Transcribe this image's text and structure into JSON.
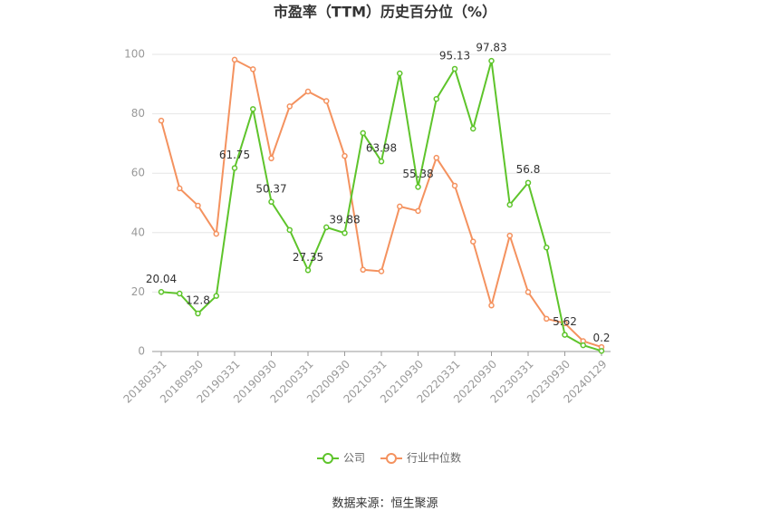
{
  "chart_data": {
    "type": "line",
    "title": "市盈率（TTM）历史百分位（%）",
    "categories": [
      "20180331",
      null,
      "20180930",
      null,
      "20190331",
      null,
      "20190930",
      null,
      "20200331",
      null,
      "20200930",
      null,
      "20210331",
      null,
      "20210930",
      null,
      "20220331",
      null,
      "20220930",
      null,
      "20230331",
      null,
      "20230930",
      null,
      "20240129"
    ],
    "series": [
      {
        "name": "公司",
        "color": "#5ec42b",
        "values": [
          20.04,
          19.5,
          12.8,
          18.7,
          61.75,
          81.6,
          50.37,
          40.9,
          27.35,
          41.8,
          39.88,
          73.5,
          63.98,
          93.6,
          55.38,
          85,
          95.13,
          75,
          97.83,
          49.4,
          56.8,
          35,
          5.62,
          2.1,
          0.2
        ]
      },
      {
        "name": "行业中位数",
        "color": "#f4925f",
        "values": [
          77.7,
          54.9,
          49.1,
          39.6,
          98.2,
          95,
          65,
          82.5,
          87.5,
          84.3,
          65.8,
          27.5,
          27,
          48.8,
          47.3,
          65.2,
          55.8,
          37,
          15.5,
          39,
          20,
          11,
          9.5,
          3.5,
          1.5
        ]
      }
    ],
    "ylim": [
      0,
      100
    ],
    "yticks": [
      0,
      20,
      40,
      60,
      80,
      100
    ],
    "grid": true,
    "source": "数据来源：恒生聚源"
  }
}
